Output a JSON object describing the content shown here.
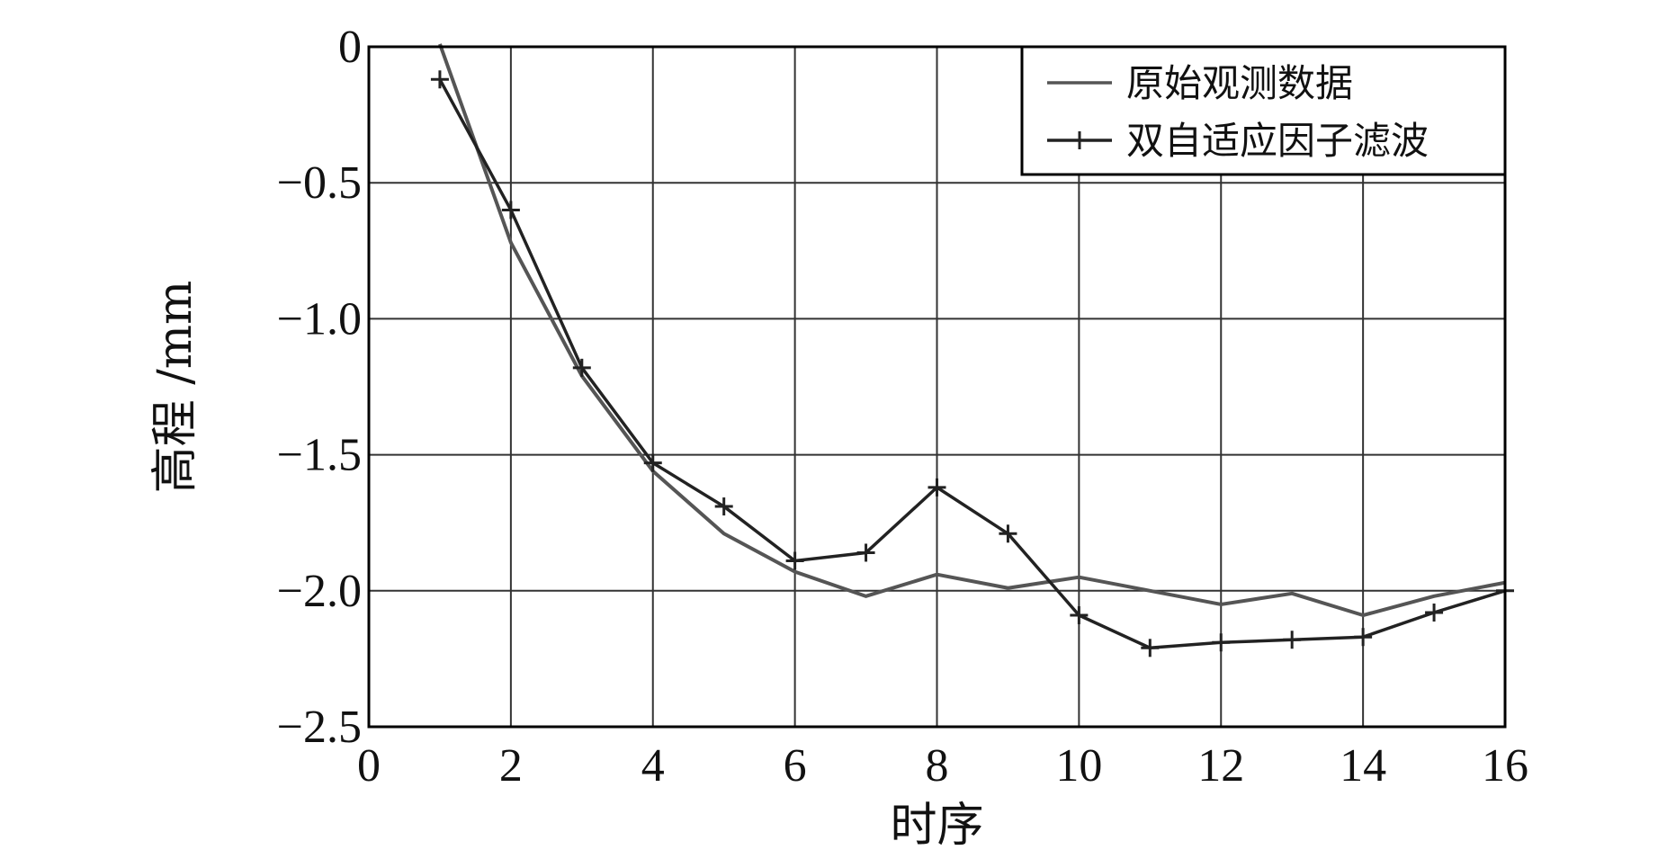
{
  "chart_data": {
    "type": "line",
    "xlabel": "时序",
    "ylabel": "高程 /mm",
    "xlim": [
      0,
      16
    ],
    "ylim": [
      -2.5,
      0
    ],
    "xticks": [
      0,
      2,
      4,
      6,
      8,
      10,
      12,
      14,
      16
    ],
    "yticks": [
      0,
      -0.5,
      -1.0,
      -1.5,
      -2.0,
      -2.5
    ],
    "xtick_labels": [
      "0",
      "2",
      "4",
      "6",
      "8",
      "10",
      "12",
      "14",
      "16"
    ],
    "ytick_labels": [
      "0",
      "−0.5",
      "−1.0",
      "−1.5",
      "−2.0",
      "−2.5"
    ],
    "grid": true,
    "legend_position": "top-right",
    "series": [
      {
        "name": "原始观测数据",
        "marker": "none",
        "color": "#555555",
        "x": [
          1,
          2,
          3,
          4,
          5,
          6,
          7,
          8,
          9,
          10,
          11,
          12,
          13,
          14,
          15,
          16
        ],
        "y": [
          0.01,
          -0.72,
          -1.21,
          -1.56,
          -1.79,
          -1.93,
          -2.02,
          -1.94,
          -1.99,
          -1.95,
          -2.0,
          -2.05,
          -2.01,
          -2.09,
          -2.02,
          -1.97
        ]
      },
      {
        "name": "双自适应因子滤波",
        "marker": "plus",
        "color": "#222222",
        "x": [
          1,
          2,
          3,
          4,
          5,
          6,
          7,
          8,
          9,
          10,
          11,
          12,
          13,
          14,
          15,
          16
        ],
        "y": [
          -0.12,
          -0.6,
          -1.18,
          -1.53,
          -1.69,
          -1.89,
          -1.86,
          -1.62,
          -1.79,
          -2.09,
          -2.21,
          -2.19,
          -2.18,
          -2.17,
          -2.08,
          -2.0
        ]
      }
    ]
  }
}
